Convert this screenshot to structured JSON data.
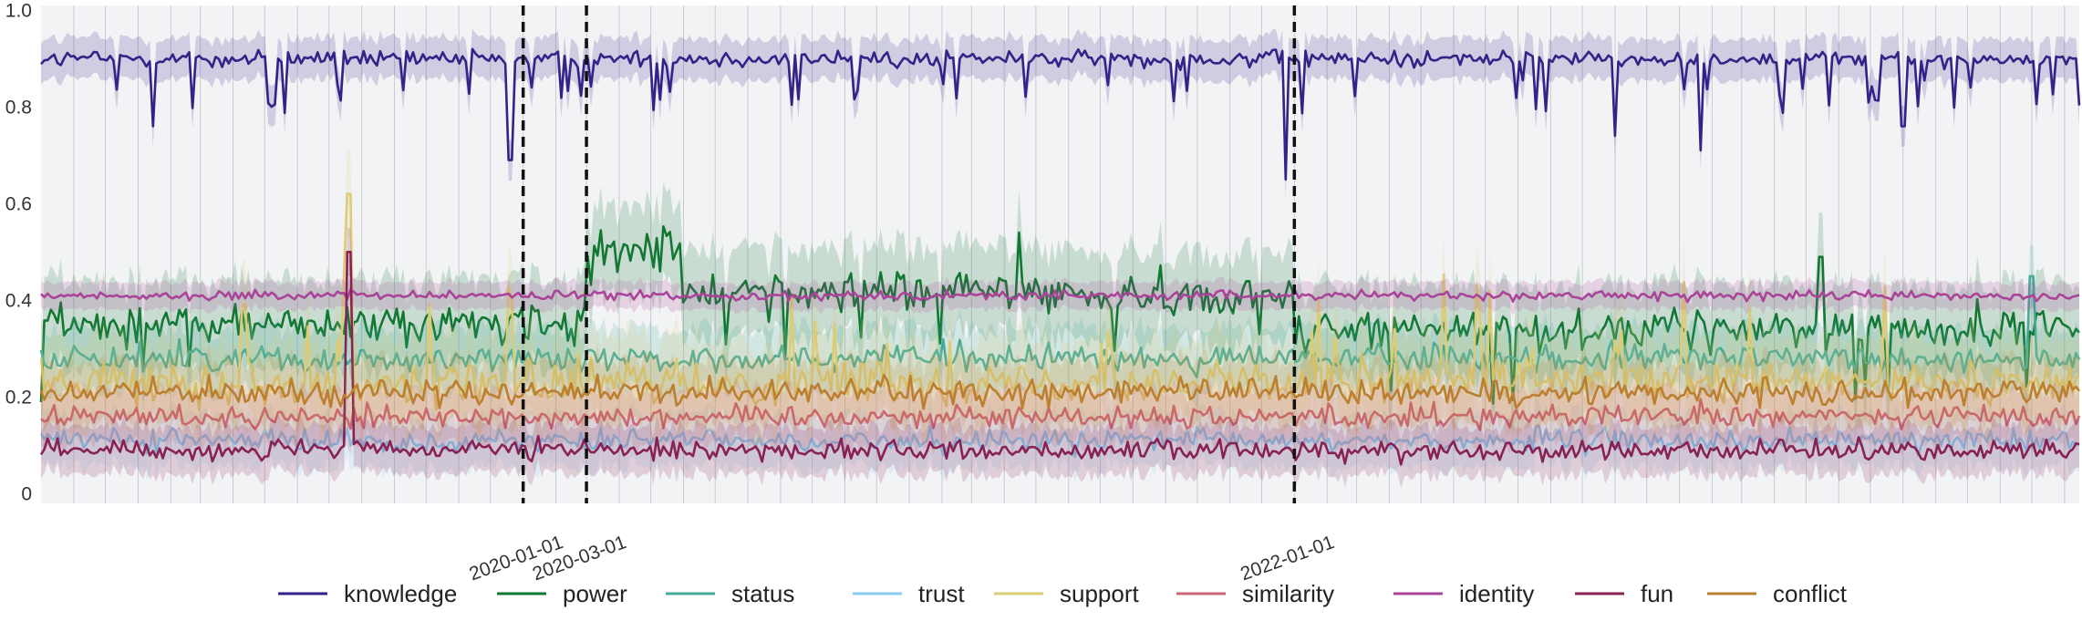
{
  "chart_data": {
    "type": "line",
    "title": "",
    "xlabel": "",
    "ylabel": "",
    "ylim": [
      -0.02,
      1.01
    ],
    "y_ticks": [
      {
        "value": 0,
        "label": "0"
      },
      {
        "value": 0.2,
        "label": "0.2"
      },
      {
        "value": 0.4,
        "label": "0.4"
      },
      {
        "value": 0.6,
        "label": "0.6"
      },
      {
        "value": 0.8,
        "label": "0.8"
      },
      {
        "value": 1.0,
        "label": "1.0"
      }
    ],
    "x_range": [
      "2018-10-01",
      "2024-01-15"
    ],
    "x_ticks": [
      "2020-01-01",
      "2020-03-01",
      "2022-01-01"
    ],
    "event_lines": [
      "2020-01-01",
      "2020-03-01",
      "2022-01-01"
    ],
    "grid": "vertical",
    "background": "#f2f3f5",
    "legend_position": "bottom",
    "series": [
      {
        "name": "knowledge",
        "color": "#332288",
        "segments": [
          {
            "from": "2018-10-01",
            "to": "2024-01-15",
            "mean": 0.9
          }
        ],
        "dips": [
          [
            "2019-01-15",
            0.76
          ],
          [
            "2019-12-20",
            0.69
          ],
          [
            "2021-12-25",
            0.65
          ],
          [
            "2022-11-01",
            0.74
          ],
          [
            "2023-01-20",
            0.71
          ],
          [
            "2023-08-01",
            0.76
          ]
        ]
      },
      {
        "name": "power",
        "color": "#117733",
        "segments": [
          {
            "from": "2018-10-01",
            "to": "2020-03-01",
            "mean": 0.35
          },
          {
            "from": "2020-03-01",
            "to": "2020-06-01",
            "mean": 0.5
          },
          {
            "from": "2020-06-01",
            "to": "2021-06-01",
            "mean": 0.42
          },
          {
            "from": "2021-06-01",
            "to": "2022-01-01",
            "mean": 0.41
          },
          {
            "from": "2022-01-01",
            "to": "2024-01-15",
            "mean": 0.34
          }
        ],
        "peaks": [
          [
            "2021-04-15",
            0.54
          ],
          [
            "2023-05-15",
            0.49
          ]
        ]
      },
      {
        "name": "status",
        "color": "#44aa99",
        "segments": [
          {
            "from": "2018-10-01",
            "to": "2024-01-15",
            "mean": 0.28
          }
        ],
        "peaks": [
          [
            "2023-12-01",
            0.45
          ]
        ]
      },
      {
        "name": "trust",
        "color": "#88ccee",
        "segments": [
          {
            "from": "2018-10-01",
            "to": "2024-01-15",
            "mean": 0.11
          }
        ]
      },
      {
        "name": "support",
        "color": "#ddcc77",
        "segments": [
          {
            "from": "2018-10-01",
            "to": "2024-01-15",
            "mean": 0.23
          }
        ],
        "peaks": [
          [
            "2019-07-20",
            0.62
          ]
        ]
      },
      {
        "name": "similarity",
        "color": "#cc6677",
        "segments": [
          {
            "from": "2018-10-01",
            "to": "2024-01-15",
            "mean": 0.16
          }
        ]
      },
      {
        "name": "identity",
        "color": "#aa4499",
        "segments": [
          {
            "from": "2018-10-01",
            "to": "2024-01-15",
            "mean": 0.41
          }
        ]
      },
      {
        "name": "fun",
        "color": "#882255",
        "segments": [
          {
            "from": "2018-10-01",
            "to": "2024-01-15",
            "mean": 0.09
          }
        ],
        "peaks": [
          [
            "2019-07-20",
            0.5
          ]
        ]
      },
      {
        "name": "conflict",
        "color": "#bb7f2f",
        "segments": [
          {
            "from": "2018-10-01",
            "to": "2024-01-15",
            "mean": 0.21
          }
        ]
      }
    ]
  }
}
